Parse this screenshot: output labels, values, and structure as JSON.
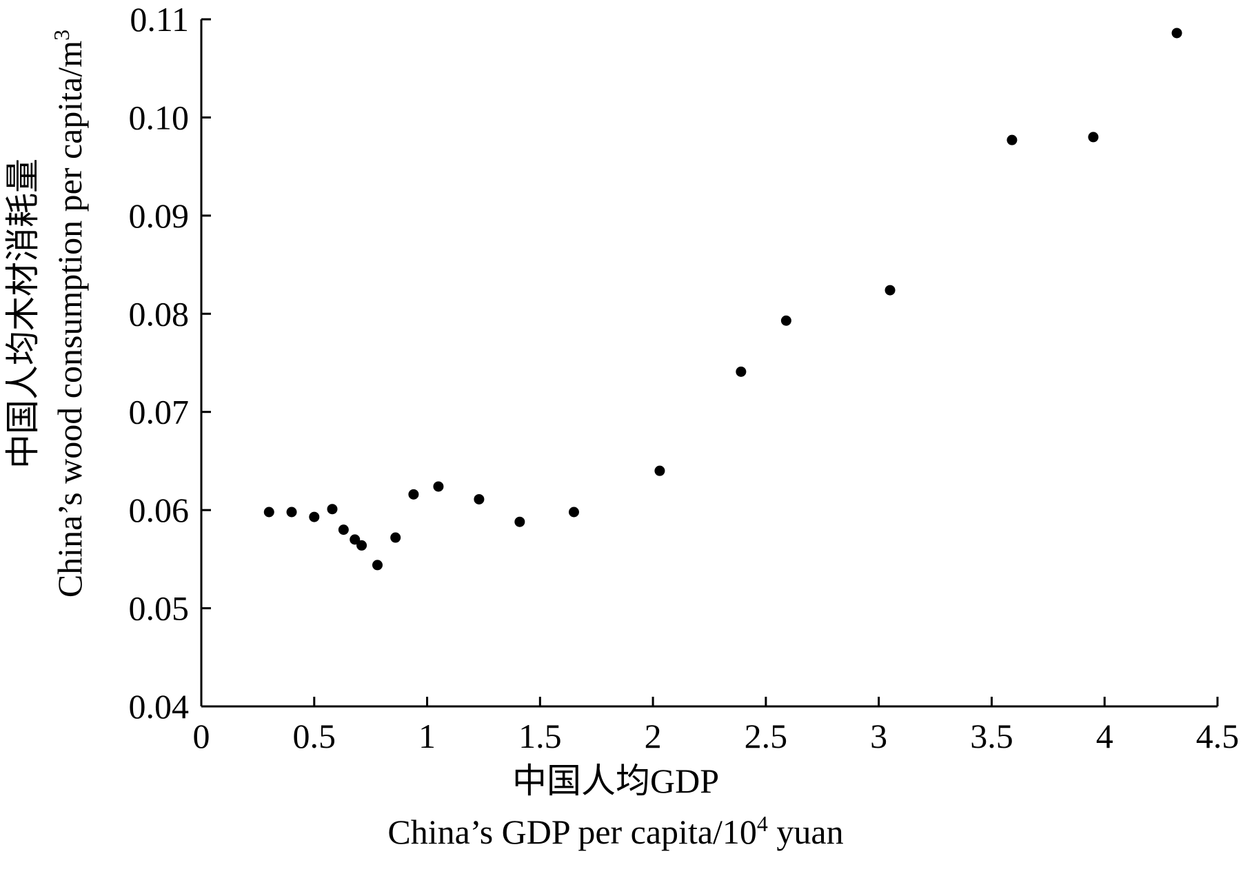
{
  "chart_data": {
    "type": "scatter",
    "title": "",
    "xlabel_zh": "中国人均GDP",
    "xlabel_en_main": "China’s GDP per capita/10",
    "xlabel_en_sup": "4",
    "xlabel_en_tail": " yuan",
    "ylabel_zh": "中国人均木材消耗量",
    "ylabel_en_main": "China’s wood consumption per capita/m",
    "ylabel_en_sup": "3",
    "xlim": [
      0,
      4.5
    ],
    "ylim": [
      0.04,
      0.11
    ],
    "x_ticks": [
      0,
      0.5,
      1,
      1.5,
      2,
      2.5,
      3,
      3.5,
      4,
      4.5
    ],
    "x_tick_labels": [
      "0",
      "0.5",
      "1",
      "1.5",
      "2",
      "2.5",
      "3",
      "3.5",
      "4",
      "4.5"
    ],
    "y_ticks": [
      0.04,
      0.05,
      0.06,
      0.07,
      0.08,
      0.09,
      0.1,
      0.11
    ],
    "y_tick_labels": [
      "0.04",
      "0.05",
      "0.06",
      "0.07",
      "0.08",
      "0.09",
      "0.10",
      "0.11"
    ],
    "grid": false,
    "legend": "none",
    "marker_color": "#000000",
    "points": [
      {
        "x": 0.3,
        "y": 0.0598
      },
      {
        "x": 0.4,
        "y": 0.0598
      },
      {
        "x": 0.5,
        "y": 0.0593
      },
      {
        "x": 0.58,
        "y": 0.0601
      },
      {
        "x": 0.63,
        "y": 0.058
      },
      {
        "x": 0.68,
        "y": 0.057
      },
      {
        "x": 0.71,
        "y": 0.0564
      },
      {
        "x": 0.78,
        "y": 0.0544
      },
      {
        "x": 0.86,
        "y": 0.0572
      },
      {
        "x": 0.94,
        "y": 0.0616
      },
      {
        "x": 1.05,
        "y": 0.0624
      },
      {
        "x": 1.23,
        "y": 0.0611
      },
      {
        "x": 1.41,
        "y": 0.0588
      },
      {
        "x": 1.65,
        "y": 0.0598
      },
      {
        "x": 2.03,
        "y": 0.064
      },
      {
        "x": 2.39,
        "y": 0.0741
      },
      {
        "x": 2.59,
        "y": 0.0793
      },
      {
        "x": 3.05,
        "y": 0.0824
      },
      {
        "x": 3.59,
        "y": 0.0977
      },
      {
        "x": 3.95,
        "y": 0.098
      },
      {
        "x": 4.32,
        "y": 0.1086
      }
    ]
  }
}
